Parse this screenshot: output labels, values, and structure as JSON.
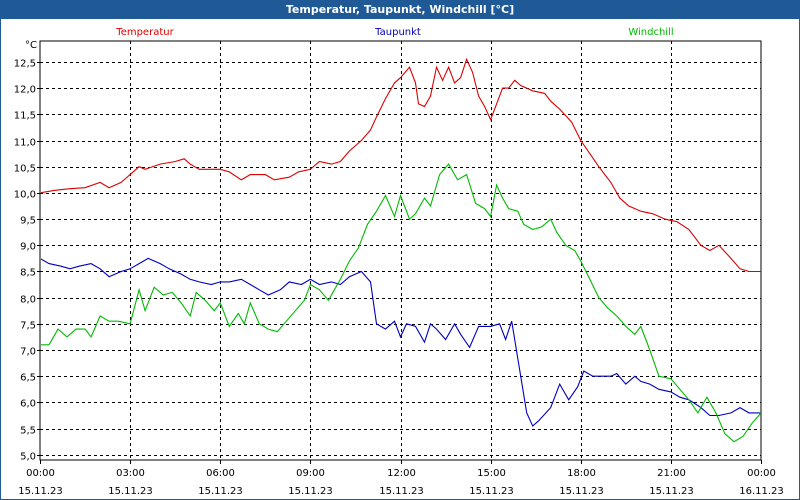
{
  "window": {
    "title": "Temperatur, Taupunkt, Windchill [°C]"
  },
  "chart_data": {
    "type": "line",
    "title": "Temperatur, Taupunkt, Windchill [°C]",
    "ylabel": "°C",
    "ylim": [
      4.9,
      12.9
    ],
    "yticks": [
      "5,0",
      "5,5",
      "6,0",
      "6,5",
      "7,0",
      "7,5",
      "8,0",
      "8,5",
      "9,0",
      "9,5",
      "10,0",
      "10,5",
      "11,0",
      "11,5",
      "12,0",
      "12,5"
    ],
    "xlim": [
      0,
      24
    ],
    "xticks": [
      {
        "hour": 0,
        "time": "00:00",
        "date": "15.11.23"
      },
      {
        "hour": 3,
        "time": "03:00",
        "date": "15.11.23"
      },
      {
        "hour": 6,
        "time": "06:00",
        "date": "15.11.23"
      },
      {
        "hour": 9,
        "time": "09:00",
        "date": "15.11.23"
      },
      {
        "hour": 12,
        "time": "12:00",
        "date": "15.11.23"
      },
      {
        "hour": 15,
        "time": "15:00",
        "date": "15.11.23"
      },
      {
        "hour": 18,
        "time": "18:00",
        "date": "15.11.23"
      },
      {
        "hour": 21,
        "time": "21:00",
        "date": "15.11.23"
      },
      {
        "hour": 24,
        "time": "00:00",
        "date": "16.11.23"
      }
    ],
    "grid": true,
    "legend": "top",
    "series": [
      {
        "name": "Temperatur",
        "color": "#dd0000",
        "points": [
          [
            0,
            10.0
          ],
          [
            0.5,
            10.05
          ],
          [
            1,
            10.08
          ],
          [
            1.5,
            10.1
          ],
          [
            2,
            10.2
          ],
          [
            2.3,
            10.1
          ],
          [
            2.7,
            10.2
          ],
          [
            3,
            10.35
          ],
          [
            3.3,
            10.5
          ],
          [
            3.5,
            10.45
          ],
          [
            4,
            10.55
          ],
          [
            4.5,
            10.6
          ],
          [
            4.8,
            10.65
          ],
          [
            5,
            10.55
          ],
          [
            5.3,
            10.45
          ],
          [
            6,
            10.45
          ],
          [
            6.3,
            10.4
          ],
          [
            6.7,
            10.25
          ],
          [
            7,
            10.35
          ],
          [
            7.5,
            10.35
          ],
          [
            7.8,
            10.25
          ],
          [
            8.3,
            10.3
          ],
          [
            8.6,
            10.4
          ],
          [
            9,
            10.45
          ],
          [
            9.3,
            10.6
          ],
          [
            9.7,
            10.55
          ],
          [
            10,
            10.6
          ],
          [
            10.3,
            10.8
          ],
          [
            10.7,
            11.0
          ],
          [
            11,
            11.2
          ],
          [
            11.2,
            11.45
          ],
          [
            11.5,
            11.8
          ],
          [
            11.8,
            12.1
          ],
          [
            12,
            12.2
          ],
          [
            12.3,
            12.4
          ],
          [
            12.5,
            12.1
          ],
          [
            12.6,
            11.7
          ],
          [
            12.8,
            11.65
          ],
          [
            13,
            11.85
          ],
          [
            13.2,
            12.4
          ],
          [
            13.4,
            12.15
          ],
          [
            13.6,
            12.4
          ],
          [
            13.8,
            12.1
          ],
          [
            14,
            12.2
          ],
          [
            14.2,
            12.55
          ],
          [
            14.4,
            12.3
          ],
          [
            14.6,
            11.85
          ],
          [
            14.8,
            11.65
          ],
          [
            15,
            11.4
          ],
          [
            15.2,
            11.7
          ],
          [
            15.4,
            12.0
          ],
          [
            15.6,
            12.0
          ],
          [
            15.8,
            12.15
          ],
          [
            16,
            12.05
          ],
          [
            16.4,
            11.95
          ],
          [
            16.8,
            11.9
          ],
          [
            17,
            11.75
          ],
          [
            17.3,
            11.6
          ],
          [
            17.7,
            11.35
          ],
          [
            18,
            11.0
          ],
          [
            18.3,
            10.75
          ],
          [
            18.6,
            10.5
          ],
          [
            19,
            10.2
          ],
          [
            19.3,
            9.9
          ],
          [
            19.6,
            9.75
          ],
          [
            20,
            9.65
          ],
          [
            20.4,
            9.6
          ],
          [
            20.8,
            9.5
          ],
          [
            21.2,
            9.45
          ],
          [
            21.6,
            9.3
          ],
          [
            22,
            9.0
          ],
          [
            22.3,
            8.9
          ],
          [
            22.6,
            9.0
          ],
          [
            23,
            8.75
          ],
          [
            23.3,
            8.55
          ],
          [
            23.6,
            8.5
          ],
          [
            24,
            8.5
          ],
          [
            24.5,
            8.3
          ]
        ]
      },
      {
        "name": "Taupunkt",
        "color": "#0000c0",
        "points": [
          [
            0,
            8.75
          ],
          [
            0.3,
            8.65
          ],
          [
            0.7,
            8.6
          ],
          [
            1,
            8.55
          ],
          [
            1.3,
            8.6
          ],
          [
            1.7,
            8.65
          ],
          [
            2,
            8.55
          ],
          [
            2.3,
            8.4
          ],
          [
            2.7,
            8.5
          ],
          [
            3,
            8.55
          ],
          [
            3.3,
            8.65
          ],
          [
            3.6,
            8.75
          ],
          [
            4,
            8.65
          ],
          [
            4.3,
            8.55
          ],
          [
            4.7,
            8.45
          ],
          [
            5,
            8.35
          ],
          [
            5.3,
            8.3
          ],
          [
            5.7,
            8.25
          ],
          [
            6,
            8.3
          ],
          [
            6.3,
            8.3
          ],
          [
            6.7,
            8.35
          ],
          [
            7,
            8.25
          ],
          [
            7.3,
            8.15
          ],
          [
            7.6,
            8.05
          ],
          [
            8,
            8.15
          ],
          [
            8.3,
            8.3
          ],
          [
            8.7,
            8.25
          ],
          [
            9,
            8.35
          ],
          [
            9.3,
            8.25
          ],
          [
            9.7,
            8.3
          ],
          [
            10,
            8.25
          ],
          [
            10.3,
            8.4
          ],
          [
            10.7,
            8.5
          ],
          [
            11,
            8.3
          ],
          [
            11.2,
            7.5
          ],
          [
            11.5,
            7.4
          ],
          [
            11.8,
            7.55
          ],
          [
            12,
            7.25
          ],
          [
            12.2,
            7.5
          ],
          [
            12.5,
            7.45
          ],
          [
            12.8,
            7.15
          ],
          [
            13,
            7.5
          ],
          [
            13.2,
            7.4
          ],
          [
            13.5,
            7.2
          ],
          [
            13.8,
            7.5
          ],
          [
            14,
            7.3
          ],
          [
            14.3,
            7.05
          ],
          [
            14.6,
            7.45
          ],
          [
            15,
            7.45
          ],
          [
            15.3,
            7.5
          ],
          [
            15.5,
            7.2
          ],
          [
            15.7,
            7.55
          ],
          [
            16,
            6.5
          ],
          [
            16.2,
            5.8
          ],
          [
            16.4,
            5.55
          ],
          [
            16.6,
            5.65
          ],
          [
            17,
            5.9
          ],
          [
            17.3,
            6.35
          ],
          [
            17.6,
            6.05
          ],
          [
            17.9,
            6.3
          ],
          [
            18.1,
            6.6
          ],
          [
            18.4,
            6.5
          ],
          [
            18.7,
            6.5
          ],
          [
            19,
            6.5
          ],
          [
            19.2,
            6.55
          ],
          [
            19.5,
            6.35
          ],
          [
            19.8,
            6.5
          ],
          [
            20,
            6.4
          ],
          [
            20.3,
            6.35
          ],
          [
            20.6,
            6.25
          ],
          [
            21,
            6.2
          ],
          [
            21.3,
            6.1
          ],
          [
            21.6,
            6.05
          ],
          [
            22,
            5.9
          ],
          [
            22.3,
            5.75
          ],
          [
            22.6,
            5.75
          ],
          [
            23,
            5.8
          ],
          [
            23.3,
            5.9
          ],
          [
            23.6,
            5.8
          ],
          [
            24,
            5.8
          ],
          [
            24.2,
            5.7
          ],
          [
            24.5,
            5.5
          ]
        ]
      },
      {
        "name": "Windchill",
        "color": "#00bb00",
        "points": [
          [
            0,
            7.1
          ],
          [
            0.3,
            7.1
          ],
          [
            0.6,
            7.4
          ],
          [
            0.9,
            7.25
          ],
          [
            1.2,
            7.4
          ],
          [
            1.5,
            7.4
          ],
          [
            1.7,
            7.25
          ],
          [
            2,
            7.65
          ],
          [
            2.3,
            7.55
          ],
          [
            2.6,
            7.55
          ],
          [
            3,
            7.5
          ],
          [
            3.3,
            8.15
          ],
          [
            3.5,
            7.75
          ],
          [
            3.8,
            8.2
          ],
          [
            4.1,
            8.05
          ],
          [
            4.4,
            8.1
          ],
          [
            4.7,
            7.9
          ],
          [
            5,
            7.65
          ],
          [
            5.2,
            8.1
          ],
          [
            5.5,
            7.95
          ],
          [
            5.8,
            7.75
          ],
          [
            6,
            7.9
          ],
          [
            6.3,
            7.45
          ],
          [
            6.6,
            7.7
          ],
          [
            6.8,
            7.5
          ],
          [
            7,
            7.9
          ],
          [
            7.3,
            7.5
          ],
          [
            7.6,
            7.4
          ],
          [
            7.9,
            7.35
          ],
          [
            8.2,
            7.55
          ],
          [
            8.5,
            7.75
          ],
          [
            8.8,
            7.95
          ],
          [
            9,
            8.25
          ],
          [
            9.3,
            8.15
          ],
          [
            9.6,
            7.95
          ],
          [
            10,
            8.35
          ],
          [
            10.3,
            8.7
          ],
          [
            10.6,
            8.95
          ],
          [
            10.9,
            9.4
          ],
          [
            11.2,
            9.65
          ],
          [
            11.5,
            9.95
          ],
          [
            11.8,
            9.55
          ],
          [
            12,
            9.95
          ],
          [
            12.3,
            9.5
          ],
          [
            12.5,
            9.6
          ],
          [
            12.8,
            9.9
          ],
          [
            13,
            9.75
          ],
          [
            13.3,
            10.35
          ],
          [
            13.6,
            10.55
          ],
          [
            13.9,
            10.25
          ],
          [
            14.2,
            10.35
          ],
          [
            14.5,
            9.8
          ],
          [
            14.8,
            9.7
          ],
          [
            15,
            9.55
          ],
          [
            15.2,
            10.15
          ],
          [
            15.4,
            9.9
          ],
          [
            15.6,
            9.7
          ],
          [
            15.9,
            9.65
          ],
          [
            16.1,
            9.4
          ],
          [
            16.4,
            9.3
          ],
          [
            16.7,
            9.35
          ],
          [
            17,
            9.5
          ],
          [
            17.2,
            9.25
          ],
          [
            17.5,
            9.0
          ],
          [
            17.8,
            8.9
          ],
          [
            18,
            8.7
          ],
          [
            18.3,
            8.35
          ],
          [
            18.6,
            8.0
          ],
          [
            18.9,
            7.8
          ],
          [
            19.2,
            7.65
          ],
          [
            19.5,
            7.45
          ],
          [
            19.8,
            7.3
          ],
          [
            20,
            7.45
          ],
          [
            20.3,
            7.0
          ],
          [
            20.6,
            6.5
          ],
          [
            21,
            6.45
          ],
          [
            21.3,
            6.25
          ],
          [
            21.6,
            6.05
          ],
          [
            21.9,
            5.8
          ],
          [
            22.2,
            6.1
          ],
          [
            22.5,
            5.8
          ],
          [
            22.8,
            5.4
          ],
          [
            23.1,
            5.25
          ],
          [
            23.4,
            5.35
          ],
          [
            23.7,
            5.6
          ],
          [
            24,
            5.8
          ],
          [
            24.3,
            5.75
          ],
          [
            24.5,
            5.45
          ]
        ]
      }
    ]
  }
}
